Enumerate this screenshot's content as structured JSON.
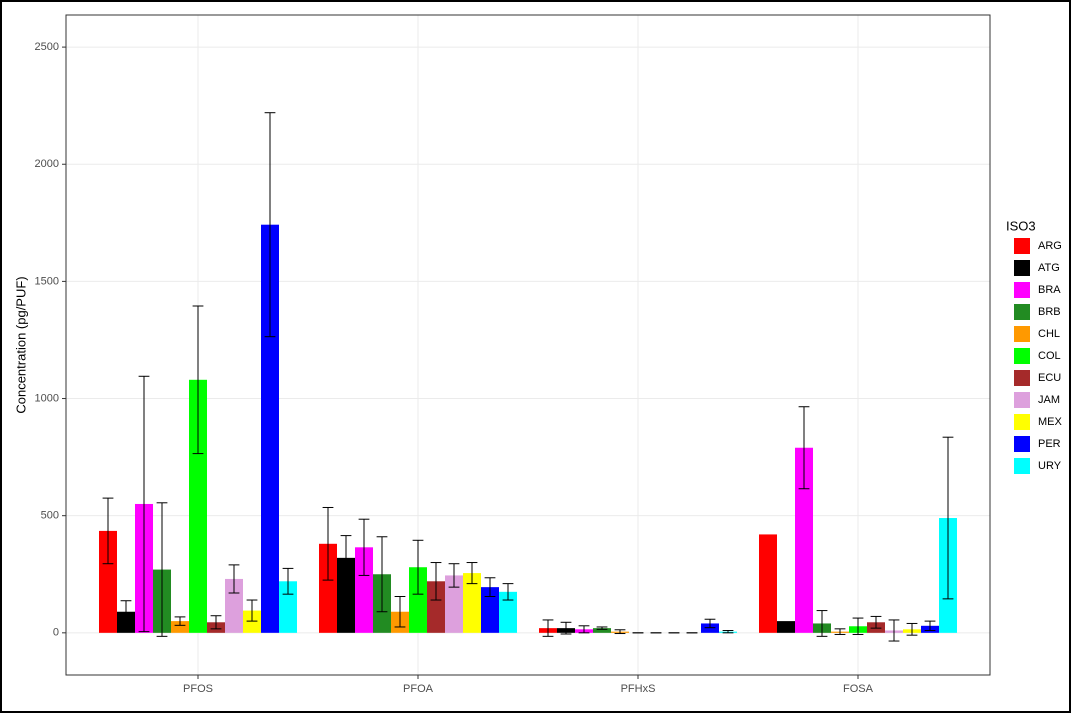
{
  "chart_data": {
    "type": "bar",
    "y_label": "Concentration (pg/PUF)",
    "legend_title": "ISO3",
    "categories": [
      "PFOS",
      "PFOA",
      "PFHxS",
      "FOSA"
    ],
    "ylim": [
      -180,
      2637
    ],
    "yticks": [
      0,
      500,
      1000,
      1500,
      2000,
      2500
    ],
    "grid": true,
    "legend_position": "right",
    "series": [
      {
        "name": "ARG",
        "color": "#ff0000",
        "values": [
          435,
          380,
          20,
          420
        ],
        "errors": [
          140,
          155,
          35,
          null
        ]
      },
      {
        "name": "ATG",
        "color": "#000000",
        "values": [
          90,
          320,
          20,
          50
        ],
        "errors": [
          47,
          95,
          25,
          null
        ]
      },
      {
        "name": "BRA",
        "color": "#ff00ff",
        "values": [
          550,
          365,
          15,
          790
        ],
        "errors": [
          545,
          120,
          15,
          175
        ]
      },
      {
        "name": "BRB",
        "color": "#228b22",
        "values": [
          270,
          250,
          20,
          40
        ],
        "errors": [
          285,
          160,
          5,
          55
        ]
      },
      {
        "name": "CHL",
        "color": "#ff9900",
        "values": [
          50,
          90,
          5,
          5
        ],
        "errors": [
          18,
          65,
          8,
          12
        ]
      },
      {
        "name": "COL",
        "color": "#00ff00",
        "values": [
          1080,
          280,
          0,
          28
        ],
        "errors": [
          315,
          115,
          0,
          35
        ]
      },
      {
        "name": "ECU",
        "color": "#a52a2a",
        "values": [
          45,
          220,
          0,
          45
        ],
        "errors": [
          28,
          80,
          0,
          25
        ]
      },
      {
        "name": "JAM",
        "color": "#dda0dd",
        "values": [
          230,
          245,
          0,
          10
        ],
        "errors": [
          60,
          50,
          0,
          45
        ]
      },
      {
        "name": "MEX",
        "color": "#ffff00",
        "values": [
          95,
          255,
          0,
          15
        ],
        "errors": [
          45,
          45,
          0,
          25
        ]
      },
      {
        "name": "PER",
        "color": "#0000ff",
        "values": [
          1742,
          195,
          40,
          30
        ],
        "errors": [
          478,
          40,
          18,
          20
        ]
      },
      {
        "name": "URY",
        "color": "#00ffff",
        "values": [
          220,
          175,
          5,
          490
        ],
        "errors": [
          55,
          35,
          5,
          345
        ]
      }
    ]
  }
}
